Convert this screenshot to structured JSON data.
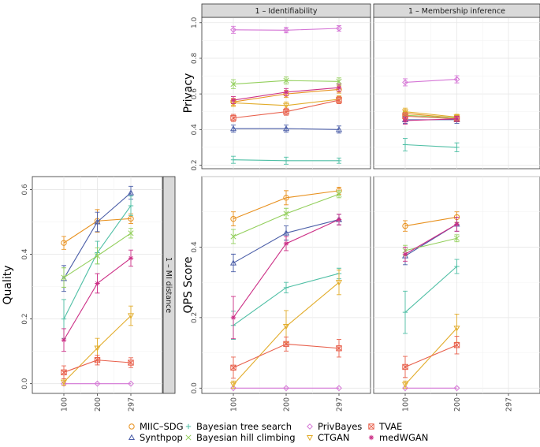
{
  "colors": {
    "MIIC-SDG": "#e8911f",
    "Synthpop": "#4b5ea8",
    "Bayesian tree search": "#4fbfa5",
    "Bayesian hill climbing": "#93cf5c",
    "PrivBayes": "#d576d6",
    "CTGAN": "#e2ac2a",
    "TVAE": "#e8604c",
    "medWGAN": "#cc2f86"
  },
  "legend": {
    "items": [
      {
        "name": "MIIC-SDG",
        "label": "MIIC–SDG",
        "shape": "circle"
      },
      {
        "name": "Synthpop",
        "label": "Synthpop",
        "shape": "triangle"
      },
      {
        "name": "Bayesian tree search",
        "label": "Bayesian tree search",
        "shape": "plus"
      },
      {
        "name": "Bayesian hill climbing",
        "label": "Bayesian hill climbing",
        "shape": "cross"
      },
      {
        "name": "PrivBayes",
        "label": "PrivBayes",
        "shape": "diamond"
      },
      {
        "name": "CTGAN",
        "label": "CTGAN",
        "shape": "invtriangle"
      },
      {
        "name": "TVAE",
        "label": "TVAE",
        "shape": "squarex"
      },
      {
        "name": "medWGAN",
        "label": "medWGAN",
        "shape": "star"
      }
    ]
  },
  "chart_data": [
    {
      "id": "quality",
      "type": "line",
      "ylabel": "Quality",
      "strip": "1 – MI distance",
      "categories": [
        "100",
        "200",
        "297"
      ],
      "yticks": [
        "0.0",
        "0.2",
        "0.4",
        "0.6"
      ],
      "ylim": [
        -0.03,
        0.64
      ],
      "series": [
        {
          "name": "MIIC-SDG",
          "values": [
            0.435,
            0.503,
            0.51
          ],
          "err": [
            0.02,
            0.035,
            0.015
          ]
        },
        {
          "name": "Synthpop",
          "values": [
            0.325,
            0.5,
            0.59
          ],
          "err": [
            0.04,
            0.03,
            0.02
          ]
        },
        {
          "name": "Bayesian tree search",
          "values": [
            0.2,
            0.405,
            0.55
          ],
          "err": [
            0.06,
            0.035,
            0.03
          ]
        },
        {
          "name": "Bayesian hill climbing",
          "values": [
            0.328,
            0.395,
            0.465
          ],
          "err": [
            0.03,
            0.025,
            0.015
          ]
        },
        {
          "name": "PrivBayes",
          "values": [
            0.0,
            0.0,
            0.0
          ],
          "err": [
            0.002,
            0.002,
            0.002
          ]
        },
        {
          "name": "CTGAN",
          "values": [
            0.005,
            0.11,
            0.21
          ],
          "err": [
            0.01,
            0.03,
            0.03
          ]
        },
        {
          "name": "TVAE",
          "values": [
            0.035,
            0.073,
            0.065
          ],
          "err": [
            0.02,
            0.015,
            0.015
          ]
        },
        {
          "name": "medWGAN",
          "values": [
            0.135,
            0.31,
            0.388
          ],
          "err": [
            0.035,
            0.03,
            0.025
          ]
        }
      ]
    },
    {
      "id": "privacy-identifiability",
      "type": "line",
      "ylabel": "Privacy",
      "strip": "1 – Identifiability",
      "categories": [
        "100",
        "200",
        "297"
      ],
      "yticks": [
        "0.2",
        "0.4",
        "0.6",
        "0.8",
        "1.0"
      ],
      "ylim": [
        0.18,
        1.03
      ],
      "series": [
        {
          "name": "MIIC-SDG",
          "values": [
            0.555,
            0.6,
            0.625
          ],
          "err": [
            0.02,
            0.02,
            0.02
          ]
        },
        {
          "name": "Synthpop",
          "values": [
            0.405,
            0.405,
            0.4
          ],
          "err": [
            0.02,
            0.02,
            0.02
          ]
        },
        {
          "name": "Bayesian tree search",
          "values": [
            0.23,
            0.225,
            0.225
          ],
          "err": [
            0.02,
            0.02,
            0.015
          ]
        },
        {
          "name": "Bayesian hill climbing",
          "values": [
            0.655,
            0.675,
            0.67
          ],
          "err": [
            0.025,
            0.02,
            0.02
          ]
        },
        {
          "name": "PrivBayes",
          "values": [
            0.96,
            0.958,
            0.968
          ],
          "err": [
            0.02,
            0.015,
            0.015
          ]
        },
        {
          "name": "CTGAN",
          "values": [
            0.55,
            0.535,
            0.57
          ],
          "err": [
            0.02,
            0.02,
            0.02
          ]
        },
        {
          "name": "TVAE",
          "values": [
            0.465,
            0.5,
            0.565
          ],
          "err": [
            0.02,
            0.02,
            0.02
          ]
        },
        {
          "name": "medWGAN",
          "values": [
            0.565,
            0.61,
            0.635
          ],
          "err": [
            0.02,
            0.02,
            0.02
          ]
        }
      ]
    },
    {
      "id": "privacy-membership",
      "type": "line",
      "ylabel": "",
      "strip": "1 – Membership inference",
      "categories": [
        "100",
        "200",
        "297"
      ],
      "ylim": [
        0.18,
        1.03
      ],
      "series": [
        {
          "name": "MIIC-SDG",
          "values": [
            0.49,
            0.465,
            null
          ],
          "err": [
            0.02,
            0.02,
            0
          ]
        },
        {
          "name": "Synthpop",
          "values": [
            0.455,
            0.455,
            null
          ],
          "err": [
            0.02,
            0.02,
            0
          ]
        },
        {
          "name": "Bayesian tree search",
          "values": [
            0.315,
            0.3,
            null
          ],
          "err": [
            0.035,
            0.025,
            0
          ]
        },
        {
          "name": "Bayesian hill climbing",
          "values": [
            0.48,
            0.465,
            null
          ],
          "err": [
            0.02,
            0.015,
            0
          ]
        },
        {
          "name": "PrivBayes",
          "values": [
            0.665,
            0.682,
            null
          ],
          "err": [
            0.02,
            0.02,
            0
          ]
        },
        {
          "name": "CTGAN",
          "values": [
            0.5,
            0.47,
            null
          ],
          "err": [
            0.02,
            0.015,
            0
          ]
        },
        {
          "name": "TVAE",
          "values": [
            0.475,
            0.46,
            null
          ],
          "err": [
            0.02,
            0.015,
            0
          ]
        },
        {
          "name": "medWGAN",
          "values": [
            0.45,
            0.46,
            null
          ],
          "err": [
            0.02,
            0.015,
            0
          ]
        }
      ]
    },
    {
      "id": "qps-identifiability",
      "type": "line",
      "ylabel": "QPS Score",
      "categories": [
        "100",
        "200",
        "297"
      ],
      "yticks": [
        "0.0",
        "0.2",
        "0.4"
      ],
      "ylim": [
        -0.015,
        0.6
      ],
      "series": [
        {
          "name": "MIIC-SDG",
          "values": [
            0.48,
            0.54,
            0.56
          ],
          "err": [
            0.02,
            0.02,
            0.01
          ]
        },
        {
          "name": "Synthpop",
          "values": [
            0.355,
            0.44,
            0.478
          ],
          "err": [
            0.025,
            0.02,
            0.015
          ]
        },
        {
          "name": "Bayesian tree search",
          "values": [
            0.178,
            0.285,
            0.325
          ],
          "err": [
            0.04,
            0.015,
            0.015
          ]
        },
        {
          "name": "Bayesian hill climbing",
          "values": [
            0.43,
            0.495,
            0.55
          ],
          "err": [
            0.02,
            0.015,
            0.01
          ]
        },
        {
          "name": "PrivBayes",
          "values": [
            0.0,
            0.0,
            0.0
          ],
          "err": [
            0.002,
            0.002,
            0.002
          ]
        },
        {
          "name": "CTGAN",
          "values": [
            0.01,
            0.175,
            0.3
          ],
          "err": [
            0.01,
            0.045,
            0.035
          ]
        },
        {
          "name": "TVAE",
          "values": [
            0.058,
            0.125,
            0.113
          ],
          "err": [
            0.03,
            0.02,
            0.025
          ]
        },
        {
          "name": "medWGAN",
          "values": [
            0.2,
            0.41,
            0.478
          ],
          "err": [
            0.06,
            0.02,
            0.015
          ]
        }
      ]
    },
    {
      "id": "qps-membership",
      "type": "line",
      "ylabel": "",
      "categories": [
        "100",
        "200",
        "297"
      ],
      "ylim": [
        -0.015,
        0.6
      ],
      "series": [
        {
          "name": "MIIC-SDG",
          "values": [
            0.46,
            0.485,
            null
          ],
          "err": [
            0.015,
            0.015,
            0
          ]
        },
        {
          "name": "Synthpop",
          "values": [
            0.375,
            0.465,
            null
          ],
          "err": [
            0.025,
            0.02,
            0
          ]
        },
        {
          "name": "Bayesian tree search",
          "values": [
            0.215,
            0.345,
            null
          ],
          "err": [
            0.06,
            0.02,
            0
          ]
        },
        {
          "name": "Bayesian hill climbing",
          "values": [
            0.39,
            0.425,
            null
          ],
          "err": [
            0.015,
            0.01,
            0
          ]
        },
        {
          "name": "PrivBayes",
          "values": [
            0.0,
            0.0,
            null
          ],
          "err": [
            0.002,
            0.002,
            0
          ]
        },
        {
          "name": "CTGAN",
          "values": [
            0.01,
            0.17,
            null
          ],
          "err": [
            0.01,
            0.04,
            0
          ]
        },
        {
          "name": "TVAE",
          "values": [
            0.06,
            0.122,
            null
          ],
          "err": [
            0.03,
            0.025,
            0
          ]
        },
        {
          "name": "medWGAN",
          "values": [
            0.38,
            0.465,
            null
          ],
          "err": [
            0.02,
            0.02,
            0
          ]
        }
      ]
    }
  ]
}
